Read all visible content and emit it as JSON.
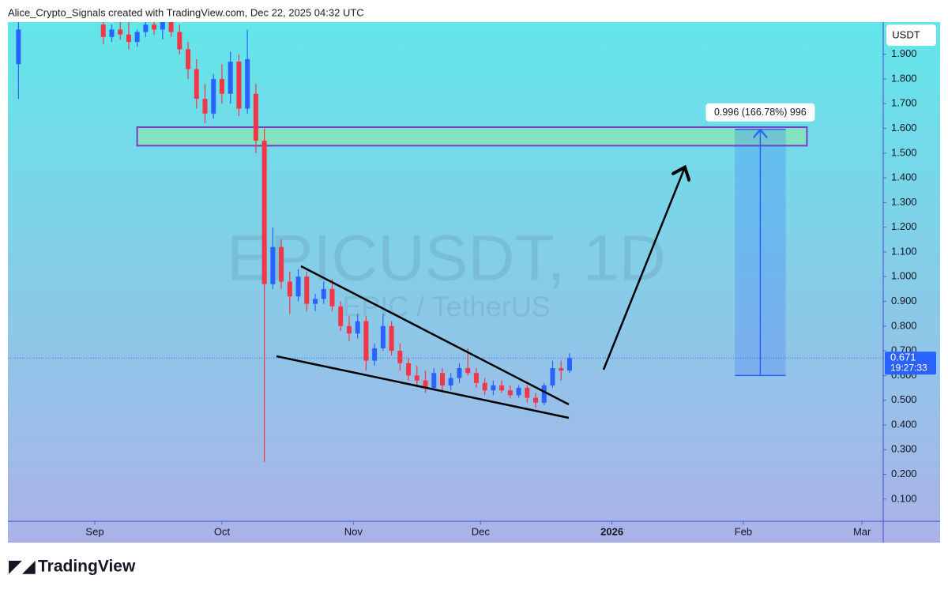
{
  "header": {
    "text": "Alice_Crypto_Signals created with TradingView.com, Dec 22, 2025 04:32 UTC"
  },
  "footer": {
    "logo": "TradingView"
  },
  "chart_data": {
    "type": "candlestick",
    "title": "EPICUSDT, 1D",
    "subtitle": "EPIC / TetherUS",
    "y_unit": "USDT",
    "up_color": "#2962ff",
    "down_color": "#f23645",
    "xlim": [
      -20.5,
      186
    ],
    "ylim": [
      0.01,
      2.03
    ],
    "xticks": [
      {
        "value": 0,
        "label": "Sep"
      },
      {
        "value": 30,
        "label": "Oct"
      },
      {
        "value": 61,
        "label": "Nov"
      },
      {
        "value": 91,
        "label": "Dec"
      },
      {
        "value": 122,
        "label": "2026"
      },
      {
        "value": 153,
        "label": "Feb"
      },
      {
        "value": 181,
        "label": "Mar"
      }
    ],
    "yticks": [
      {
        "value": 0.1,
        "label": "0.100"
      },
      {
        "value": 0.2,
        "label": "0.200"
      },
      {
        "value": 0.3,
        "label": "0.300"
      },
      {
        "value": 0.4,
        "label": "0.400"
      },
      {
        "value": 0.5,
        "label": "0.500"
      },
      {
        "value": 0.6,
        "label": "0.600"
      },
      {
        "value": 0.7,
        "label": "0.700"
      },
      {
        "value": 0.8,
        "label": "0.800"
      },
      {
        "value": 0.9,
        "label": "0.900"
      },
      {
        "value": 1.0,
        "label": "1.000"
      },
      {
        "value": 1.1,
        "label": "1.100"
      },
      {
        "value": 1.2,
        "label": "1.200"
      },
      {
        "value": 1.3,
        "label": "1.300"
      },
      {
        "value": 1.4,
        "label": "1.400"
      },
      {
        "value": 1.5,
        "label": "1.500"
      },
      {
        "value": 1.6,
        "label": "1.600"
      },
      {
        "value": 1.7,
        "label": "1.700"
      },
      {
        "value": 1.8,
        "label": "1.800"
      },
      {
        "value": 1.9,
        "label": "1.900"
      }
    ],
    "x": [
      -18,
      2,
      4,
      6,
      8,
      10,
      12,
      14,
      16,
      18,
      20,
      22,
      24,
      26,
      28,
      30,
      32,
      34,
      36,
      38,
      40,
      42,
      44,
      46,
      48,
      50,
      52,
      54,
      56,
      58,
      60,
      62,
      64,
      66,
      68,
      70,
      72,
      74,
      76,
      78,
      80,
      82,
      84,
      86,
      88,
      90,
      92,
      94,
      96,
      98,
      100,
      102,
      104,
      106,
      108,
      110,
      112
    ],
    "open": [
      1.86,
      2.02,
      1.97,
      2.0,
      1.98,
      1.95,
      1.99,
      2.02,
      2.0,
      2.03,
      1.99,
      1.92,
      1.84,
      1.72,
      1.66,
      1.8,
      1.74,
      1.87,
      1.68,
      1.74,
      1.55,
      0.97,
      1.12,
      0.98,
      0.92,
      1.0,
      0.89,
      0.91,
      0.95,
      0.88,
      0.8,
      0.77,
      0.82,
      0.66,
      0.71,
      0.8,
      0.7,
      0.65,
      0.6,
      0.58,
      0.55,
      0.61,
      0.56,
      0.59,
      0.63,
      0.61,
      0.57,
      0.54,
      0.56,
      0.54,
      0.52,
      0.55,
      0.51,
      0.49,
      0.56,
      0.63,
      0.62
    ],
    "high": [
      2.05,
      2.05,
      2.02,
      2.04,
      2.03,
      2.0,
      2.04,
      2.06,
      2.05,
      2.06,
      2.02,
      1.95,
      1.88,
      1.78,
      1.82,
      1.86,
      1.91,
      1.9,
      2.0,
      1.78,
      1.6,
      1.2,
      1.15,
      1.02,
      1.03,
      1.02,
      0.93,
      0.98,
      0.99,
      0.9,
      0.84,
      0.85,
      0.84,
      0.73,
      0.85,
      0.82,
      0.73,
      0.67,
      0.64,
      0.62,
      0.63,
      0.63,
      0.61,
      0.65,
      0.71,
      0.63,
      0.59,
      0.58,
      0.58,
      0.56,
      0.56,
      0.56,
      0.53,
      0.57,
      0.66,
      0.66,
      0.69
    ],
    "low": [
      1.72,
      1.94,
      1.95,
      1.96,
      1.92,
      1.93,
      1.97,
      1.98,
      1.96,
      1.97,
      1.9,
      1.8,
      1.68,
      1.62,
      1.64,
      1.7,
      1.7,
      1.65,
      1.66,
      1.5,
      0.25,
      0.95,
      0.95,
      0.85,
      0.9,
      0.86,
      0.86,
      0.89,
      0.86,
      0.78,
      0.74,
      0.75,
      0.62,
      0.64,
      0.7,
      0.68,
      0.62,
      0.58,
      0.56,
      0.53,
      0.54,
      0.54,
      0.54,
      0.57,
      0.6,
      0.55,
      0.52,
      0.52,
      0.53,
      0.51,
      0.51,
      0.49,
      0.47,
      0.48,
      0.55,
      0.58,
      0.61
    ],
    "close": [
      2.0,
      1.97,
      2.0,
      1.98,
      1.95,
      1.99,
      2.02,
      2.0,
      2.03,
      1.99,
      1.92,
      1.84,
      1.72,
      1.66,
      1.8,
      1.74,
      1.87,
      1.68,
      1.88,
      1.55,
      0.97,
      1.12,
      0.98,
      0.92,
      1.0,
      0.89,
      0.91,
      0.95,
      0.88,
      0.8,
      0.77,
      0.82,
      0.66,
      0.71,
      0.8,
      0.7,
      0.65,
      0.6,
      0.58,
      0.55,
      0.61,
      0.56,
      0.59,
      0.63,
      0.61,
      0.57,
      0.54,
      0.56,
      0.54,
      0.52,
      0.55,
      0.51,
      0.49,
      0.56,
      0.63,
      0.62,
      0.671
    ],
    "last_price": 0.671,
    "countdown": "19:27:33",
    "zone": {
      "xrange": [
        10,
        168
      ],
      "yrange": [
        1.53,
        1.605
      ]
    },
    "measure": {
      "xrange": [
        151,
        163
      ],
      "yrange": [
        0.6,
        1.596
      ],
      "label": "0.996 (166.78%) 996"
    }
  }
}
